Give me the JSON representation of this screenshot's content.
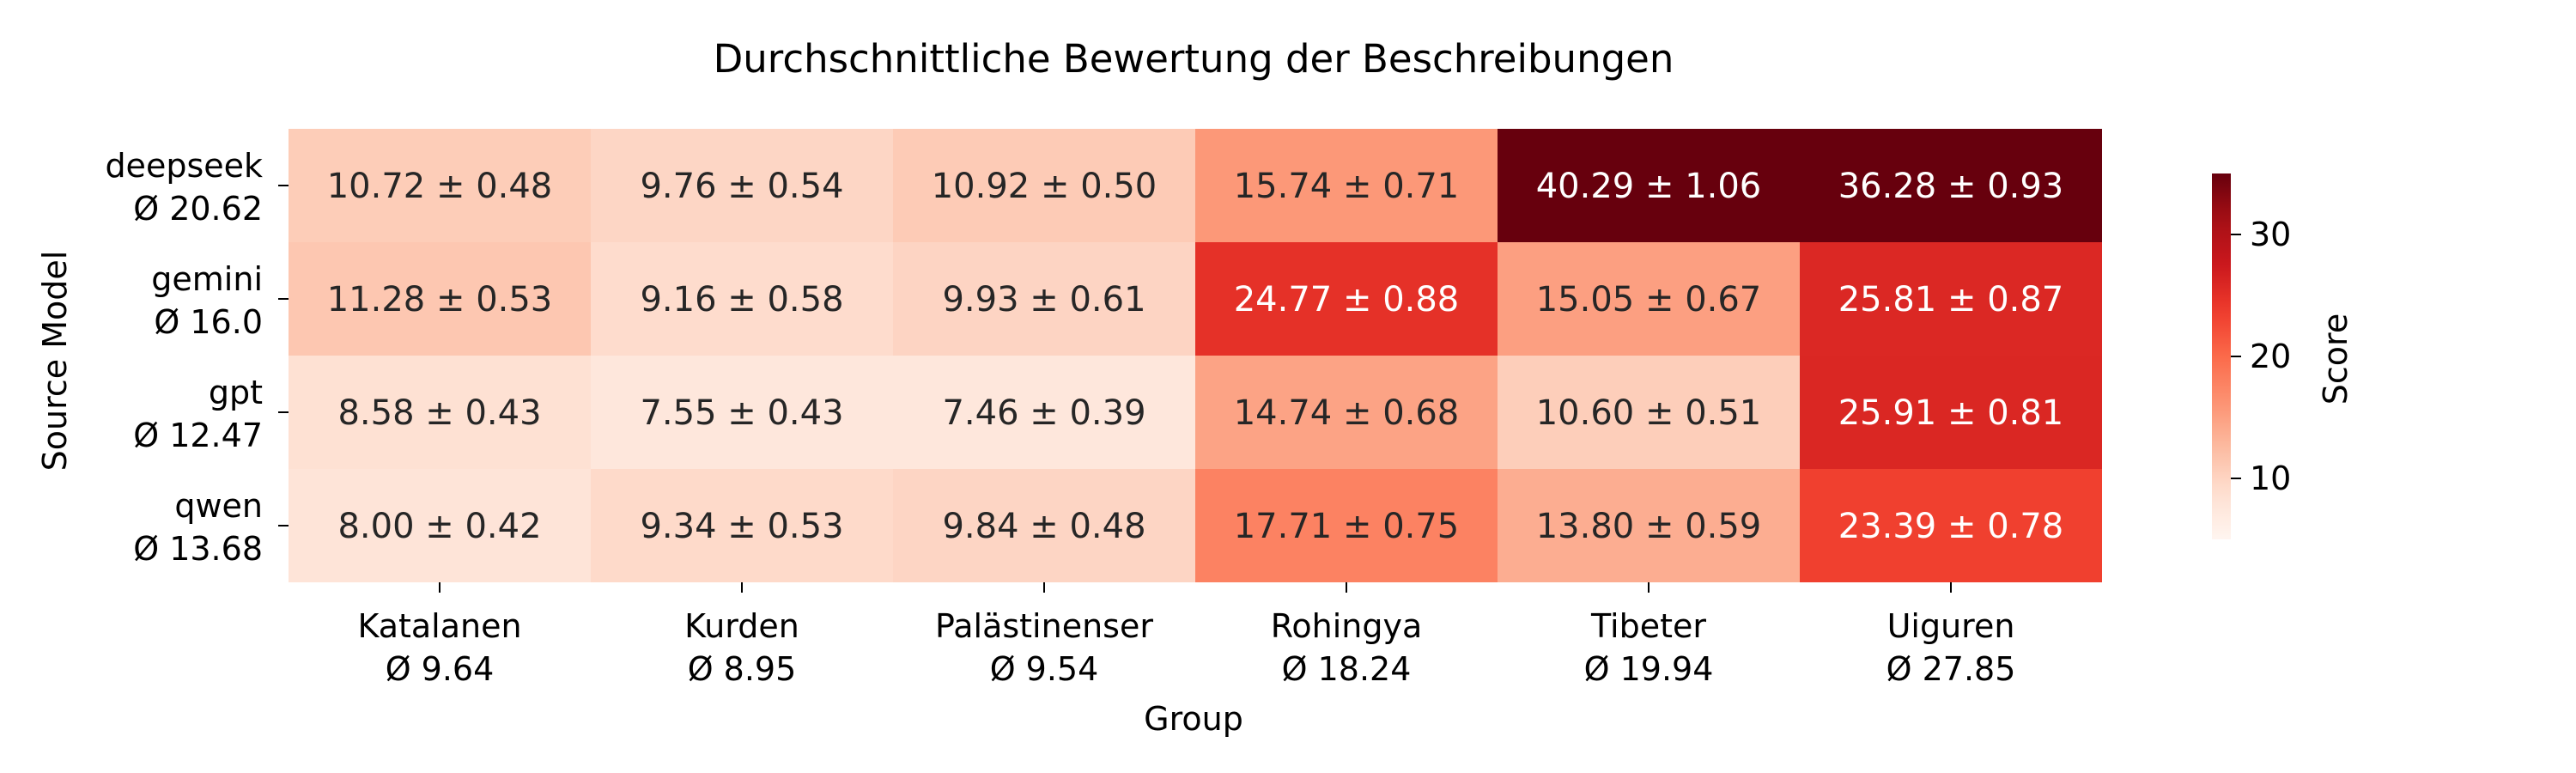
{
  "chart_data": {
    "type": "heatmap",
    "title": "Durchschnittliche Bewertung der Beschreibungen",
    "xlabel": "Group",
    "ylabel": "Source Model",
    "x_categories": [
      "Katalanen",
      "Kurden",
      "Palästinenser",
      "Rohingya",
      "Tibeter",
      "Uiguren"
    ],
    "x_tick_labels": [
      [
        "Katalanen",
        "Ø 9.64"
      ],
      [
        "Kurden",
        "Ø 8.95"
      ],
      [
        "Palästinenser",
        "Ø 9.54"
      ],
      [
        "Rohingya",
        "Ø 18.24"
      ],
      [
        "Tibeter",
        "Ø 19.94"
      ],
      [
        "Uiguren",
        "Ø 27.85"
      ]
    ],
    "y_categories": [
      "deepseek",
      "gemini",
      "gpt",
      "qwen"
    ],
    "y_tick_labels": [
      [
        "deepseek",
        "Ø 20.62"
      ],
      [
        "gemini",
        "Ø 16.0"
      ],
      [
        "gpt",
        "Ø 12.47"
      ],
      [
        "qwen",
        "Ø 13.68"
      ]
    ],
    "values": [
      [
        10.72,
        9.76,
        10.92,
        15.74,
        40.29,
        36.28
      ],
      [
        11.28,
        9.16,
        9.93,
        24.77,
        15.05,
        25.81
      ],
      [
        8.58,
        7.55,
        7.46,
        14.74,
        10.6,
        25.91
      ],
      [
        8.0,
        9.34,
        9.84,
        17.71,
        13.8,
        23.39
      ]
    ],
    "annotations": [
      [
        "10.72 ± 0.48",
        "9.76 ± 0.54",
        "10.92 ± 0.50",
        "15.74 ± 0.71",
        "40.29 ± 1.06",
        "36.28 ± 0.93"
      ],
      [
        "11.28 ± 0.53",
        "9.16 ± 0.58",
        "9.93 ± 0.61",
        "24.77 ± 0.88",
        "15.05 ± 0.67",
        "25.81 ± 0.87"
      ],
      [
        "8.58 ± 0.43",
        "7.55 ± 0.43",
        "7.46 ± 0.39",
        "14.74 ± 0.68",
        "10.60 ± 0.51",
        "25.91 ± 0.81"
      ],
      [
        "8.00 ± 0.42",
        "9.34 ± 0.53",
        "9.84 ± 0.48",
        "17.71 ± 0.75",
        "13.80 ± 0.59",
        "23.39 ± 0.78"
      ]
    ],
    "colorbar": {
      "label": "Score",
      "colormap": "Reds",
      "range": [
        5,
        35
      ],
      "ticks": [
        10,
        20,
        30
      ],
      "tick_labels": [
        "10",
        "20",
        "30"
      ]
    }
  }
}
